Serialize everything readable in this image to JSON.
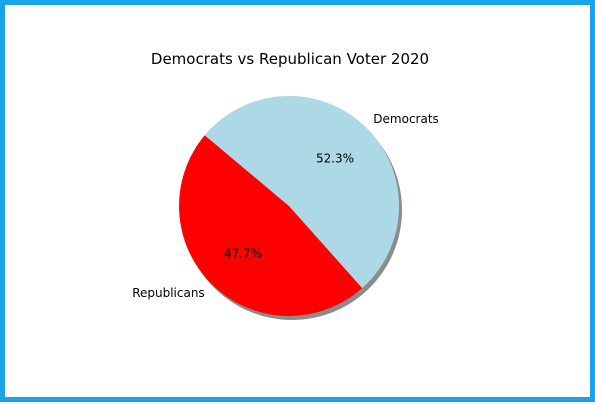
{
  "chart_data": {
    "type": "pie",
    "title": "Democrats vs Republican Voter 2020",
    "categories": [
      "Republicans",
      "Democrats"
    ],
    "values": [
      47.7,
      52.3
    ],
    "value_labels": [
      "47.7%",
      "52.3%"
    ],
    "colors": [
      "#ff0000",
      "#add8e6"
    ],
    "start_angle_deg": 140,
    "direction": "counterclockwise",
    "shadow": true,
    "legend": "none"
  },
  "frame": {
    "border_color": "#1aa3e8"
  }
}
